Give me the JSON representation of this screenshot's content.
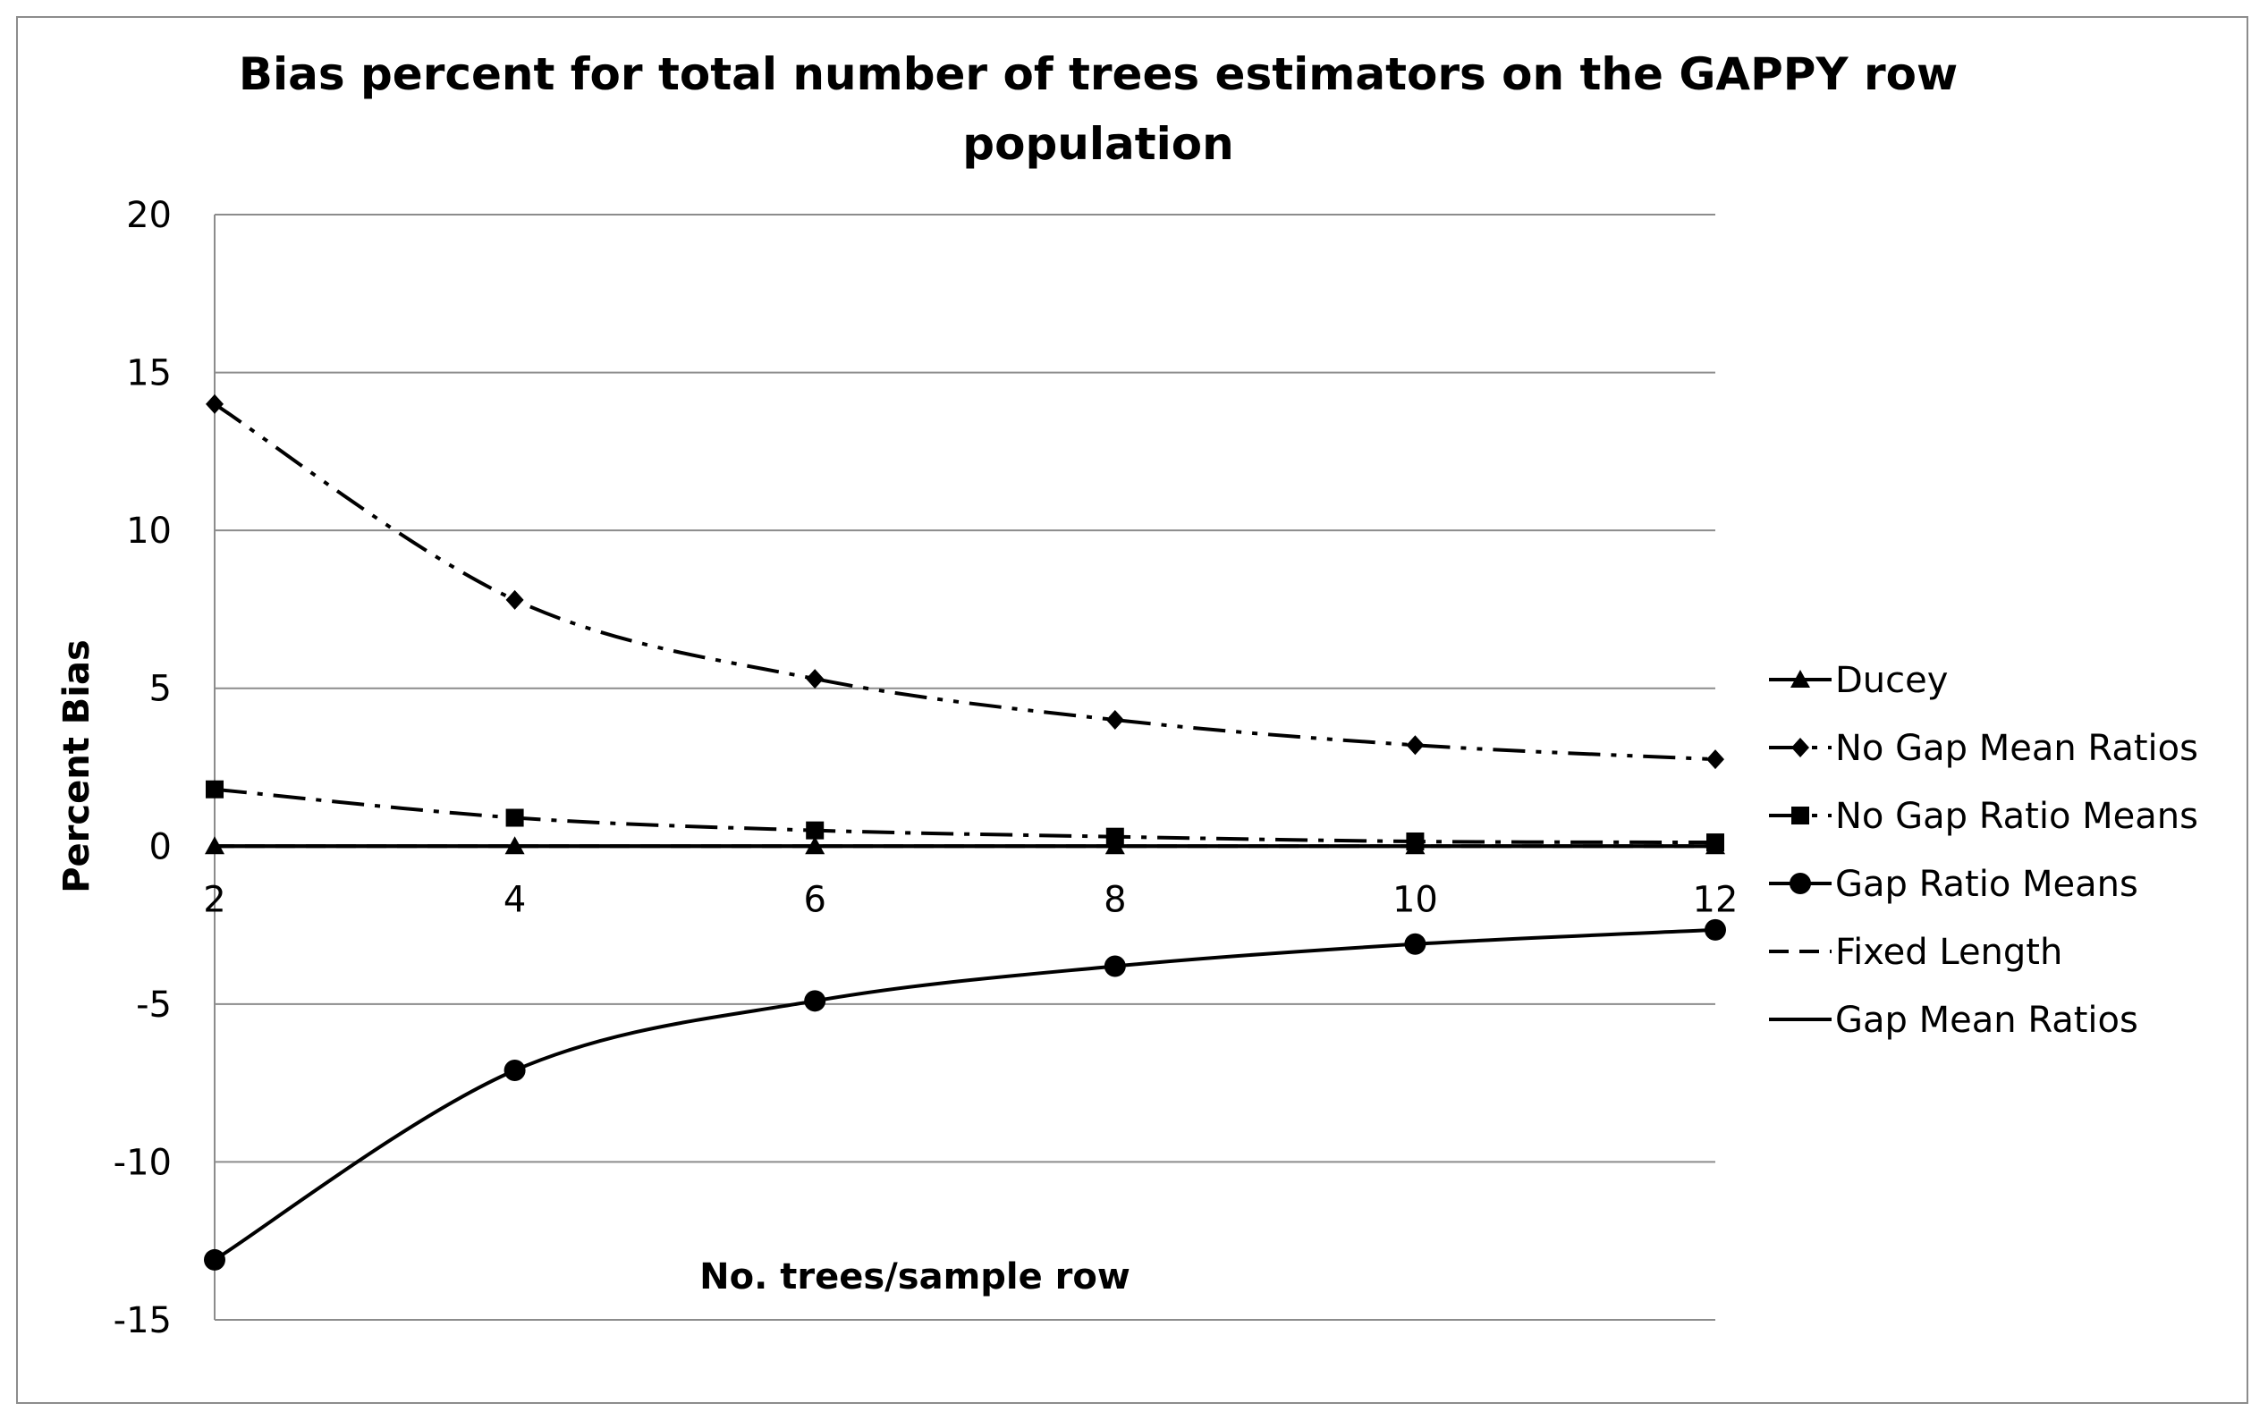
{
  "chart_data": {
    "type": "line",
    "title": "Bias percent for total number of trees estimators on the GAPPY row population",
    "title_lines": [
      "Bias percent for total number of trees estimators on the GAPPY row",
      "population"
    ],
    "xlabel": "No. trees/sample row",
    "ylabel": "Percent Bias",
    "x": [
      2,
      4,
      6,
      8,
      10,
      12
    ],
    "xlim": [
      2,
      12
    ],
    "ylim": [
      -15,
      20
    ],
    "yticks": [
      20,
      15,
      10,
      5,
      0,
      -5,
      -10,
      -15
    ],
    "xticks": [
      2,
      4,
      6,
      8,
      10,
      12
    ],
    "grid": true,
    "legend_position": "right",
    "series": [
      {
        "name": "Ducey",
        "values": [
          0,
          0,
          0,
          0,
          0,
          0
        ],
        "marker": "triangle",
        "line_style": "solid"
      },
      {
        "name": "No Gap Mean Ratios",
        "values": [
          14.0,
          7.8,
          5.3,
          4.0,
          3.2,
          2.75
        ],
        "marker": "diamond",
        "line_style": "dash-dot-dot"
      },
      {
        "name": "No Gap Ratio Means",
        "values": [
          1.8,
          0.9,
          0.5,
          0.3,
          0.15,
          0.12
        ],
        "marker": "square",
        "line_style": "dash-dot"
      },
      {
        "name": "Gap Ratio Means",
        "values": [
          -13.1,
          -7.1,
          -4.9,
          -3.8,
          -3.1,
          -2.65
        ],
        "marker": "circle",
        "line_style": "solid"
      },
      {
        "name": "Fixed Length",
        "values": [
          0,
          0,
          0,
          0,
          0,
          0
        ],
        "marker": "none",
        "line_style": "dashed"
      },
      {
        "name": "Gap Mean Ratios",
        "values": [
          0,
          0,
          0,
          0,
          0,
          0
        ],
        "marker": "none",
        "line_style": "solid"
      }
    ]
  },
  "colors": {
    "line": "#000000",
    "grid": "#8c8c8c",
    "frame": "#8c8c8c",
    "background": "#ffffff"
  }
}
